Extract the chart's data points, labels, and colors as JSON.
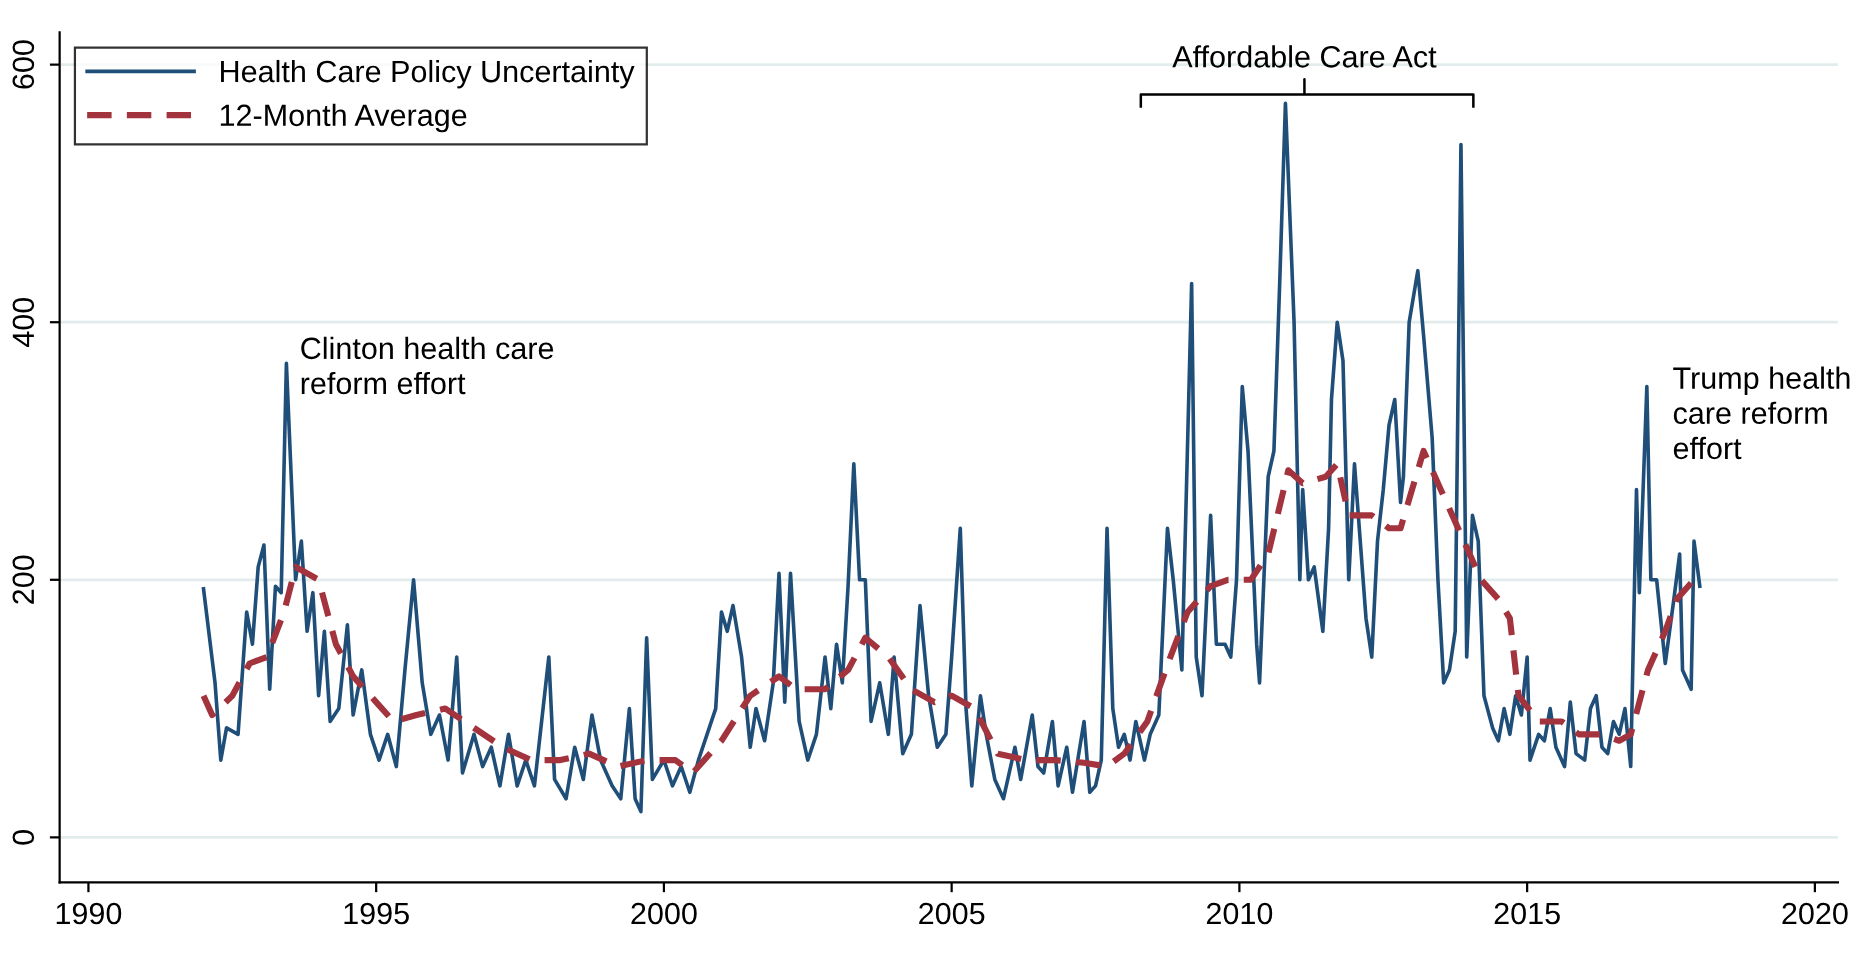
{
  "chart_data": {
    "type": "line",
    "xlim": [
      1989.5,
      2020.4
    ],
    "xticks": [
      1990,
      1995,
      2000,
      2005,
      2010,
      2015,
      2020
    ],
    "ylim": [
      -35,
      625
    ],
    "yticks": [
      0,
      200,
      400,
      600
    ],
    "grid": "y",
    "legend": "top left",
    "series": [
      {
        "name": "Health Care Policy Uncertainty",
        "color": "#1f4e79",
        "line_style": "solid",
        "x": [
          1992.0,
          1992.2,
          1992.3,
          1992.4,
          1992.6,
          1992.75,
          1992.85,
          1992.95,
          1993.05,
          1993.15,
          1993.25,
          1993.35,
          1993.44,
          1993.6,
          1993.7,
          1993.8,
          1993.9,
          1994.0,
          1994.1,
          1994.2,
          1994.35,
          1994.5,
          1994.6,
          1994.75,
          1994.9,
          1995.05,
          1995.2,
          1995.35,
          1995.5,
          1995.65,
          1995.8,
          1995.95,
          1996.1,
          1996.25,
          1996.4,
          1996.5,
          1996.7,
          1996.85,
          1997.0,
          1997.15,
          1997.3,
          1997.45,
          1997.6,
          1997.75,
          1998.0,
          1998.1,
          1998.3,
          1998.45,
          1998.6,
          1998.75,
          1998.9,
          1999.1,
          1999.25,
          1999.4,
          1999.5,
          1999.6,
          1999.7,
          1999.8,
          2000.0,
          2000.15,
          2000.3,
          2000.45,
          2000.6,
          2000.75,
          2000.9,
          2001.0,
          2001.1,
          2001.2,
          2001.35,
          2001.5,
          2001.6,
          2001.75,
          2001.9,
          2002.0,
          2002.1,
          2002.2,
          2002.35,
          2002.5,
          2002.65,
          2002.8,
          2002.9,
          2003.0,
          2003.1,
          2003.2,
          2003.3,
          2003.4,
          2003.5,
          2003.6,
          2003.75,
          2003.9,
          2004.0,
          2004.15,
          2004.3,
          2004.45,
          2004.6,
          2004.75,
          2004.9,
          2005.0,
          2005.15,
          2005.25,
          2005.35,
          2005.5,
          2005.6,
          2005.75,
          2005.9,
          2006.0,
          2006.1,
          2006.2,
          2006.4,
          2006.5,
          2006.6,
          2006.75,
          2006.85,
          2007.0,
          2007.1,
          2007.3,
          2007.4,
          2007.5,
          2007.6,
          2007.7,
          2007.8,
          2007.9,
          2008.0,
          2008.1,
          2008.2,
          2008.35,
          2008.45,
          2008.6,
          2008.75,
          2008.85,
          2009.0,
          2009.17,
          2009.25,
          2009.35,
          2009.5,
          2009.6,
          2009.75,
          2009.85,
          2009.95,
          2010.05,
          2010.15,
          2010.3,
          2010.35,
          2010.5,
          2010.6,
          2010.7,
          2010.8,
          2010.95,
          2011.05,
          2011.1,
          2011.2,
          2011.3,
          2011.45,
          2011.55,
          2011.6,
          2011.7,
          2011.8,
          2011.9,
          2012.0,
          2012.1,
          2012.2,
          2012.3,
          2012.4,
          2012.5,
          2012.6,
          2012.7,
          2012.8,
          2012.85,
          2012.95,
          2013.1,
          2013.2,
          2013.35,
          2013.45,
          2013.55,
          2013.65,
          2013.75,
          2013.85,
          2013.95,
          2014.05,
          2014.15,
          2014.25,
          2014.4,
          2014.5,
          2014.6,
          2014.7,
          2014.8,
          2014.9,
          2015.0,
          2015.05,
          2015.2,
          2015.3,
          2015.4,
          2015.5,
          2015.65,
          2015.75,
          2015.85,
          2016.0,
          2016.1,
          2016.2,
          2016.3,
          2016.4,
          2016.5,
          2016.6,
          2016.7,
          2016.8,
          2016.9,
          2016.95,
          2017.08,
          2017.15,
          2017.25,
          2017.4,
          2017.55,
          2017.65,
          2017.7,
          2017.85,
          2017.9,
          2018.0
        ],
        "values": [
          193,
          120,
          60,
          85,
          80,
          175,
          150,
          210,
          227,
          115,
          195,
          190,
          368,
          200,
          230,
          160,
          190,
          110,
          160,
          90,
          100,
          165,
          95,
          130,
          80,
          60,
          80,
          55,
          130,
          200,
          120,
          80,
          95,
          60,
          140,
          50,
          80,
          55,
          70,
          40,
          80,
          40,
          60,
          40,
          140,
          45,
          30,
          70,
          45,
          95,
          60,
          40,
          30,
          100,
          30,
          20,
          155,
          45,
          60,
          40,
          55,
          35,
          60,
          80,
          100,
          175,
          160,
          180,
          140,
          70,
          100,
          75,
          120,
          205,
          105,
          205,
          90,
          60,
          80,
          140,
          100,
          150,
          120,
          195,
          290,
          200,
          200,
          90,
          120,
          80,
          140,
          65,
          80,
          180,
          110,
          70,
          80,
          140,
          240,
          100,
          40,
          110,
          80,
          45,
          30,
          50,
          70,
          45,
          95,
          55,
          50,
          90,
          40,
          70,
          35,
          90,
          35,
          40,
          60,
          240,
          100,
          70,
          80,
          60,
          90,
          60,
          80,
          95,
          240,
          200,
          130,
          430,
          140,
          110,
          250,
          150,
          150,
          140,
          200,
          350,
          300,
          150,
          120,
          280,
          300,
          430,
          570,
          400,
          200,
          270,
          200,
          210,
          160,
          240,
          340,
          400,
          370,
          200,
          290,
          230,
          170,
          140,
          230,
          270,
          320,
          340,
          260,
          280,
          400,
          440,
          390,
          310,
          200,
          120,
          130,
          160,
          538,
          140,
          250,
          230,
          110,
          85,
          75,
          100,
          80,
          110,
          95,
          140,
          60,
          80,
          75,
          100,
          70,
          55,
          105,
          65,
          60,
          100,
          110,
          70,
          65,
          90,
          80,
          100,
          55,
          270,
          190,
          350,
          200,
          200,
          135,
          185,
          220,
          130,
          115,
          230,
          195
        ]
      },
      {
        "name": "12-Month Average",
        "color": "#a3333d",
        "line_style": "dashed",
        "x": [
          1992.0,
          1992.15,
          1992.5,
          1992.8,
          1993.1,
          1993.4,
          1993.6,
          1994.0,
          1994.3,
          1994.6,
          1995.0,
          1995.3,
          1995.7,
          1996.2,
          1996.7,
          1997.2,
          1997.7,
          1998.2,
          1998.7,
          1999.2,
          1999.7,
          2000.2,
          2000.5,
          2001.0,
          2001.5,
          2002.0,
          2002.3,
          2002.8,
          2003.2,
          2003.5,
          2003.9,
          2004.3,
          2004.7,
          2005.0,
          2005.4,
          2005.8,
          2006.3,
          2006.8,
          2007.3,
          2007.7,
          2008.0,
          2008.4,
          2008.8,
          2009.1,
          2009.5,
          2009.8,
          2010.2,
          2010.5,
          2010.85,
          2011.1,
          2011.5,
          2011.7,
          2011.9,
          2012.3,
          2012.6,
          2012.8,
          2013.0,
          2013.2,
          2013.5,
          2013.8,
          2014.2,
          2014.5,
          2014.7,
          2014.85,
          2015.2,
          2015.6,
          2015.9,
          2016.3,
          2016.6,
          2016.8,
          2017.1,
          2017.4,
          2017.6,
          2017.9,
          2018.0
        ],
        "values": [
          110,
          95,
          110,
          135,
          140,
          175,
          210,
          200,
          150,
          125,
          105,
          90,
          95,
          100,
          85,
          70,
          60,
          60,
          65,
          55,
          60,
          60,
          50,
          75,
          110,
          125,
          115,
          115,
          130,
          155,
          140,
          115,
          105,
          110,
          100,
          65,
          60,
          60,
          58,
          55,
          65,
          90,
          140,
          175,
          195,
          200,
          200,
          220,
          285,
          275,
          280,
          290,
          250,
          250,
          240,
          240,
          270,
          300,
          270,
          240,
          200,
          185,
          170,
          110,
          90,
          90,
          80,
          80,
          75,
          80,
          130,
          160,
          185,
          200,
          195
        ]
      }
    ],
    "annotations": [
      "Clinton health care\nreform effort",
      "Affordable Care Act",
      "Trump health\ncare reform\neffort"
    ]
  }
}
